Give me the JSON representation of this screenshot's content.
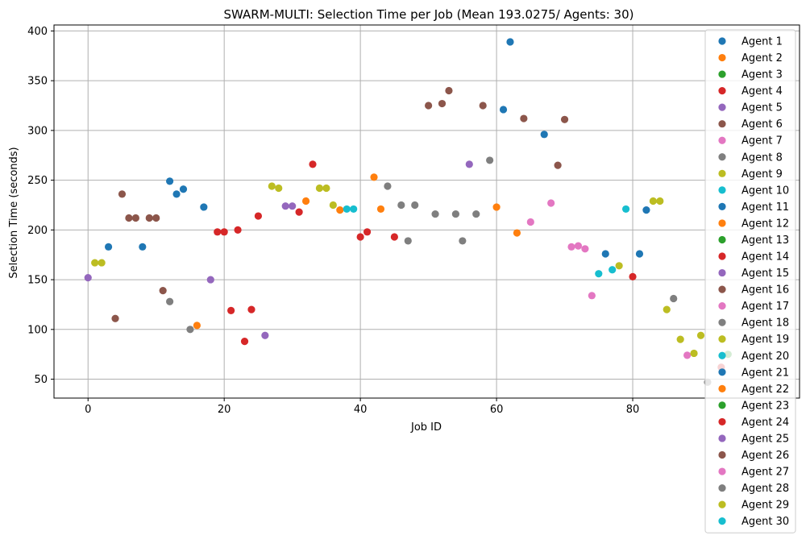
{
  "chart_data": {
    "type": "scatter",
    "title": "SWARM-MULTI: Selection Time per Job (Mean 193.0275/ Agents: 30)",
    "xlabel": "Job ID",
    "ylabel": "Selection Time (seconds)",
    "xlim": [
      -5,
      104.5
    ],
    "ylim": [
      31,
      406
    ],
    "xticks": [
      0,
      20,
      40,
      60,
      80
    ],
    "yticks": [
      50,
      100,
      150,
      200,
      250,
      300,
      350,
      400
    ],
    "grid": true,
    "legend_placement": "right",
    "series": [
      {
        "name": "Agent 1",
        "color": "#1f77b4",
        "points": [
          [
            3,
            183
          ],
          [
            8,
            183
          ],
          [
            12,
            249
          ],
          [
            13,
            236
          ],
          [
            14,
            241
          ],
          [
            17,
            223
          ],
          [
            61,
            321
          ],
          [
            62,
            389
          ],
          [
            67,
            296
          ],
          [
            76,
            176
          ],
          [
            81,
            176
          ],
          [
            82,
            220
          ]
        ]
      },
      {
        "name": "Agent 2",
        "color": "#ff7f0e",
        "points": [
          [
            16,
            104
          ],
          [
            32,
            229
          ],
          [
            37,
            220
          ],
          [
            42,
            253
          ],
          [
            43,
            221
          ],
          [
            60,
            223
          ],
          [
            63,
            197
          ]
        ]
      },
      {
        "name": "Agent 3",
        "color": "#2ca02c",
        "points": [
          [
            94,
            75
          ]
        ]
      },
      {
        "name": "Agent 4",
        "color": "#d62728",
        "points": [
          [
            19,
            198
          ],
          [
            20,
            198
          ],
          [
            21,
            119
          ],
          [
            22,
            200
          ],
          [
            23,
            88
          ],
          [
            24,
            120
          ],
          [
            25,
            214
          ],
          [
            31,
            218
          ],
          [
            33,
            266
          ],
          [
            40,
            193
          ],
          [
            41,
            198
          ],
          [
            45,
            193
          ],
          [
            80,
            153
          ],
          [
            93,
            62
          ]
        ]
      },
      {
        "name": "Agent 5",
        "color": "#9467bd",
        "points": [
          [
            0,
            152
          ],
          [
            18,
            150
          ],
          [
            26,
            94
          ],
          [
            29,
            224
          ],
          [
            30,
            224
          ],
          [
            56,
            266
          ]
        ]
      },
      {
        "name": "Agent 6",
        "color": "#8c564b",
        "points": [
          [
            4,
            111
          ],
          [
            5,
            236
          ],
          [
            6,
            212
          ],
          [
            7,
            212
          ],
          [
            9,
            212
          ],
          [
            10,
            212
          ],
          [
            11,
            139
          ],
          [
            50,
            325
          ],
          [
            52,
            327
          ],
          [
            53,
            340
          ],
          [
            58,
            325
          ],
          [
            64,
            312
          ],
          [
            69,
            265
          ],
          [
            70,
            311
          ]
        ]
      },
      {
        "name": "Agent 7",
        "color": "#e377c2",
        "points": [
          [
            65,
            208
          ],
          [
            68,
            227
          ],
          [
            71,
            183
          ],
          [
            72,
            184
          ],
          [
            73,
            181
          ],
          [
            74,
            134
          ],
          [
            88,
            74
          ]
        ]
      },
      {
        "name": "Agent 8",
        "color": "#7f7f7f",
        "points": [
          [
            12,
            128
          ],
          [
            15,
            100
          ],
          [
            44,
            244
          ],
          [
            46,
            225
          ],
          [
            47,
            189
          ],
          [
            48,
            225
          ],
          [
            51,
            216
          ],
          [
            54,
            216
          ],
          [
            55,
            189
          ],
          [
            57,
            216
          ],
          [
            59,
            270
          ],
          [
            86,
            131
          ],
          [
            91,
            47
          ]
        ]
      },
      {
        "name": "Agent 9",
        "color": "#bcbd22",
        "points": [
          [
            1,
            167
          ],
          [
            2,
            167
          ],
          [
            27,
            244
          ],
          [
            28,
            242
          ],
          [
            34,
            242
          ],
          [
            35,
            242
          ],
          [
            36,
            225
          ],
          [
            78,
            164
          ],
          [
            83,
            229
          ],
          [
            84,
            229
          ],
          [
            85,
            120
          ],
          [
            87,
            90
          ],
          [
            89,
            76
          ],
          [
            90,
            94
          ]
        ]
      },
      {
        "name": "Agent 10",
        "color": "#17becf",
        "points": [
          [
            38,
            221
          ],
          [
            39,
            221
          ],
          [
            75,
            156
          ],
          [
            77,
            160
          ],
          [
            79,
            221
          ]
        ]
      },
      {
        "name": "Agent 11",
        "color": "#1f77b4",
        "points": []
      },
      {
        "name": "Agent 12",
        "color": "#ff7f0e",
        "points": []
      },
      {
        "name": "Agent 13",
        "color": "#2ca02c",
        "points": []
      },
      {
        "name": "Agent 14",
        "color": "#d62728",
        "points": []
      },
      {
        "name": "Agent 15",
        "color": "#9467bd",
        "points": []
      },
      {
        "name": "Agent 16",
        "color": "#8c564b",
        "points": []
      },
      {
        "name": "Agent 17",
        "color": "#e377c2",
        "points": []
      },
      {
        "name": "Agent 18",
        "color": "#7f7f7f",
        "points": []
      },
      {
        "name": "Agent 19",
        "color": "#bcbd22",
        "points": []
      },
      {
        "name": "Agent 20",
        "color": "#17becf",
        "points": []
      },
      {
        "name": "Agent 21",
        "color": "#1f77b4",
        "points": []
      },
      {
        "name": "Agent 22",
        "color": "#ff7f0e",
        "points": []
      },
      {
        "name": "Agent 23",
        "color": "#2ca02c",
        "points": []
      },
      {
        "name": "Agent 24",
        "color": "#d62728",
        "points": []
      },
      {
        "name": "Agent 25",
        "color": "#9467bd",
        "points": []
      },
      {
        "name": "Agent 26",
        "color": "#8c564b",
        "points": []
      },
      {
        "name": "Agent 27",
        "color": "#e377c2",
        "points": []
      },
      {
        "name": "Agent 28",
        "color": "#7f7f7f",
        "points": []
      },
      {
        "name": "Agent 29",
        "color": "#bcbd22",
        "points": []
      },
      {
        "name": "Agent 30",
        "color": "#17becf",
        "points": []
      }
    ]
  }
}
